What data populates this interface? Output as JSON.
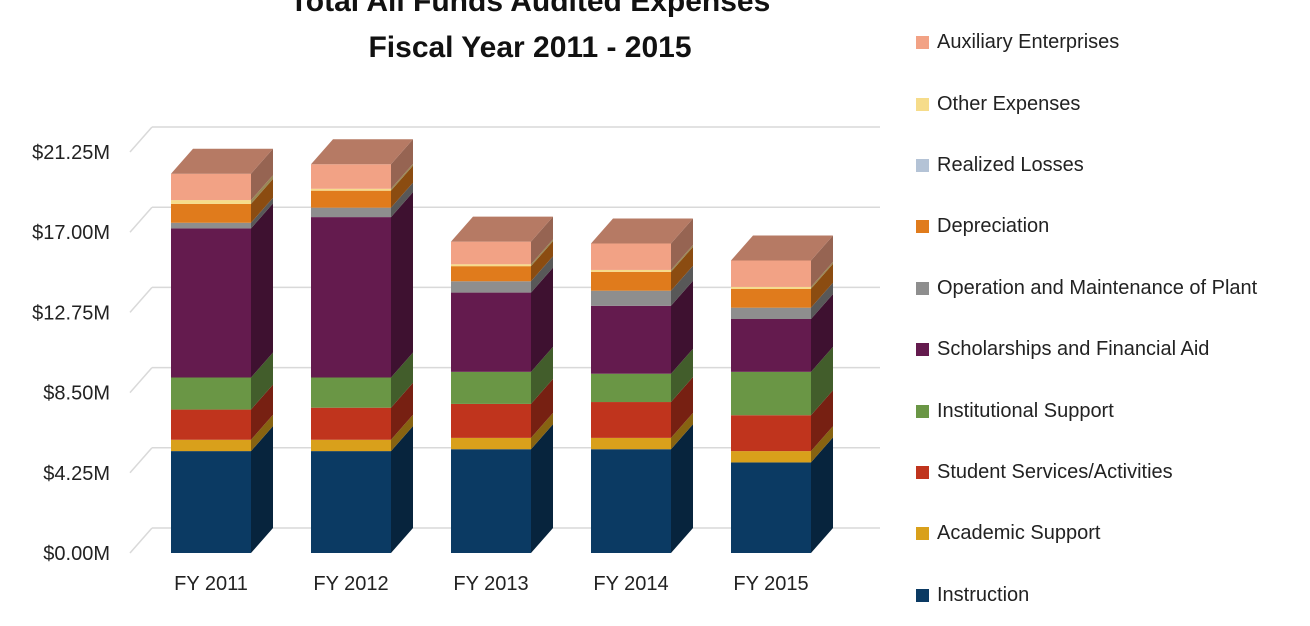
{
  "chart_data": {
    "type": "bar",
    "stacked": true,
    "title": "Total All Funds Audited Expenses",
    "subtitle": "Fiscal Year 2011 - 2015",
    "categories": [
      "FY 2011",
      "FY 2012",
      "FY 2013",
      "FY 2014",
      "FY 2015"
    ],
    "y_ticks": [
      "$0.00M",
      "$4.25M",
      "$8.50M",
      "$12.75M",
      "$17.00M",
      "$21.25M"
    ],
    "ylim": [
      0,
      21.25
    ],
    "y_unit": "millions of dollars",
    "grid": true,
    "legend_position": "right",
    "series": [
      {
        "name": "Instruction",
        "color": "#0b3a63",
        "values": [
          5.4,
          5.4,
          5.5,
          5.5,
          4.8
        ]
      },
      {
        "name": "Academic Support",
        "color": "#d9a01b",
        "values": [
          0.6,
          0.6,
          0.6,
          0.6,
          0.6
        ]
      },
      {
        "name": "Student Services/Activities",
        "color": "#c0341d",
        "values": [
          1.6,
          1.7,
          1.8,
          1.9,
          1.9
        ]
      },
      {
        "name": "Institutional Support",
        "color": "#6a9645",
        "values": [
          1.7,
          1.6,
          1.7,
          1.5,
          2.3
        ]
      },
      {
        "name": "Scholarships and Financial Aid",
        "color": "#641b4e",
        "values": [
          7.9,
          8.5,
          4.2,
          3.6,
          2.8
        ]
      },
      {
        "name": "Operation and Maintenance of Plant",
        "color": "#8e8e8e",
        "values": [
          0.3,
          0.5,
          0.6,
          0.8,
          0.6
        ]
      },
      {
        "name": "Depreciation",
        "color": "#e07b1c",
        "values": [
          1.0,
          0.9,
          0.8,
          1.0,
          1.0
        ]
      },
      {
        "name": "Realized Losses",
        "color": "#b4c3d6",
        "values": [
          0.0,
          0.0,
          0.0,
          0.0,
          0.0
        ]
      },
      {
        "name": "Other Expenses",
        "color": "#f6dc8a",
        "values": [
          0.2,
          0.1,
          0.1,
          0.1,
          0.1
        ]
      },
      {
        "name": "Auxiliary Enterprises",
        "color": "#f2a285",
        "values": [
          1.4,
          1.3,
          1.2,
          1.4,
          1.4
        ]
      }
    ]
  }
}
